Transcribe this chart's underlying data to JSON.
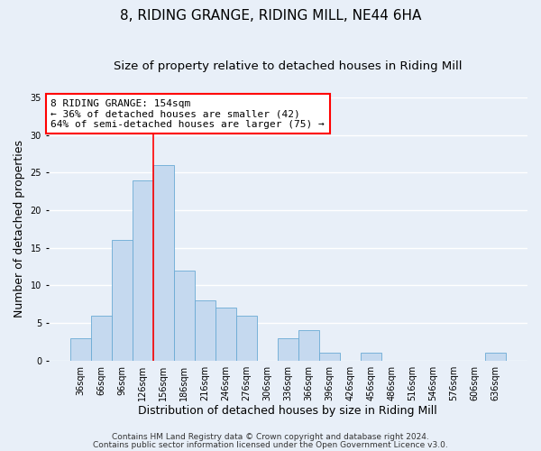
{
  "title": "8, RIDING GRANGE, RIDING MILL, NE44 6HA",
  "subtitle": "Size of property relative to detached houses in Riding Mill",
  "xlabel": "Distribution of detached houses by size in Riding Mill",
  "ylabel": "Number of detached properties",
  "bin_labels": [
    "36sqm",
    "66sqm",
    "96sqm",
    "126sqm",
    "156sqm",
    "186sqm",
    "216sqm",
    "246sqm",
    "276sqm",
    "306sqm",
    "336sqm",
    "366sqm",
    "396sqm",
    "426sqm",
    "456sqm",
    "486sqm",
    "516sqm",
    "546sqm",
    "576sqm",
    "606sqm",
    "636sqm"
  ],
  "bar_values": [
    3,
    6,
    16,
    24,
    26,
    12,
    8,
    7,
    6,
    0,
    3,
    4,
    1,
    0,
    1,
    0,
    0,
    0,
    0,
    0,
    1
  ],
  "bar_color": "#c5d9ef",
  "bar_edge_color": "#6aaad4",
  "bar_width": 1.0,
  "vline_index": 4,
  "vline_color": "red",
  "ylim": [
    0,
    35
  ],
  "yticks": [
    0,
    5,
    10,
    15,
    20,
    25,
    30,
    35
  ],
  "annotation_title": "8 RIDING GRANGE: 154sqm",
  "annotation_line1": "← 36% of detached houses are smaller (42)",
  "annotation_line2": "64% of semi-detached houses are larger (75) →",
  "annotation_box_color": "white",
  "annotation_box_edge_color": "red",
  "footer_line1": "Contains HM Land Registry data © Crown copyright and database right 2024.",
  "footer_line2": "Contains public sector information licensed under the Open Government Licence v3.0.",
  "background_color": "#e8eff8",
  "plot_bg_color": "#e8eff8",
  "grid_color": "white",
  "title_fontsize": 11,
  "subtitle_fontsize": 9.5,
  "xlabel_fontsize": 9,
  "ylabel_fontsize": 9,
  "tick_fontsize": 7,
  "annotation_fontsize": 8,
  "footer_fontsize": 6.5
}
